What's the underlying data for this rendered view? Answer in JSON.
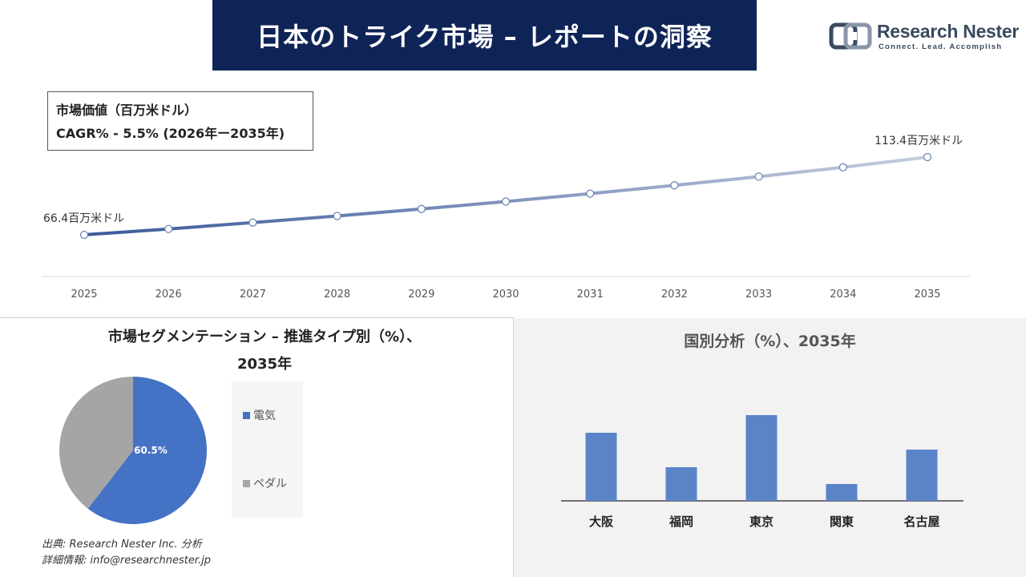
{
  "header": {
    "title": "日本のトライク市場 – レポートの洞察",
    "logo_name": "Research Nester",
    "logo_tagline": "Connect. Lead. Accomplish"
  },
  "info_box": {
    "line1": "市場価値（百万米ドル）",
    "line2": "CAGR% - 5.5% (2026年ー2035年)"
  },
  "colors": {
    "banner": "#0f2456",
    "line_start": "#3a5a9a",
    "line_end": "#c5cde0",
    "pie_electric": "#4472c4",
    "pie_pedal": "#a5a5a5",
    "bar": "#5b84c8"
  },
  "chart_data": [
    {
      "type": "line",
      "x": [
        "2025",
        "2026",
        "2027",
        "2028",
        "2029",
        "2030",
        "2031",
        "2032",
        "2033",
        "2034",
        "2035"
      ],
      "values": [
        66.4,
        69.9,
        73.8,
        77.8,
        82.0,
        86.5,
        91.3,
        96.3,
        101.6,
        107.2,
        113.4
      ],
      "annotations": {
        "first": "66.4百万米ドル",
        "last": "113.4百万米ドル"
      },
      "grid": false
    },
    {
      "type": "pie",
      "title": "市場セグメンテーション – 推進タイプ別（%）、",
      "subtitle": "2035年",
      "categories": [
        "電気",
        "ペダル"
      ],
      "values": [
        60.5,
        39.5
      ],
      "data_labels": [
        "60.5%",
        ""
      ],
      "legend": "right"
    },
    {
      "type": "bar",
      "title": "国別分析（%）、2035年",
      "categories": [
        "大阪",
        "福岡",
        "東京",
        "関東",
        "名古屋"
      ],
      "values": [
        85,
        42,
        107,
        21,
        64
      ]
    }
  ],
  "footer": {
    "source": "出典: Research Nester Inc. 分析",
    "contact": "詳細情報: info@researchnester.jp"
  }
}
